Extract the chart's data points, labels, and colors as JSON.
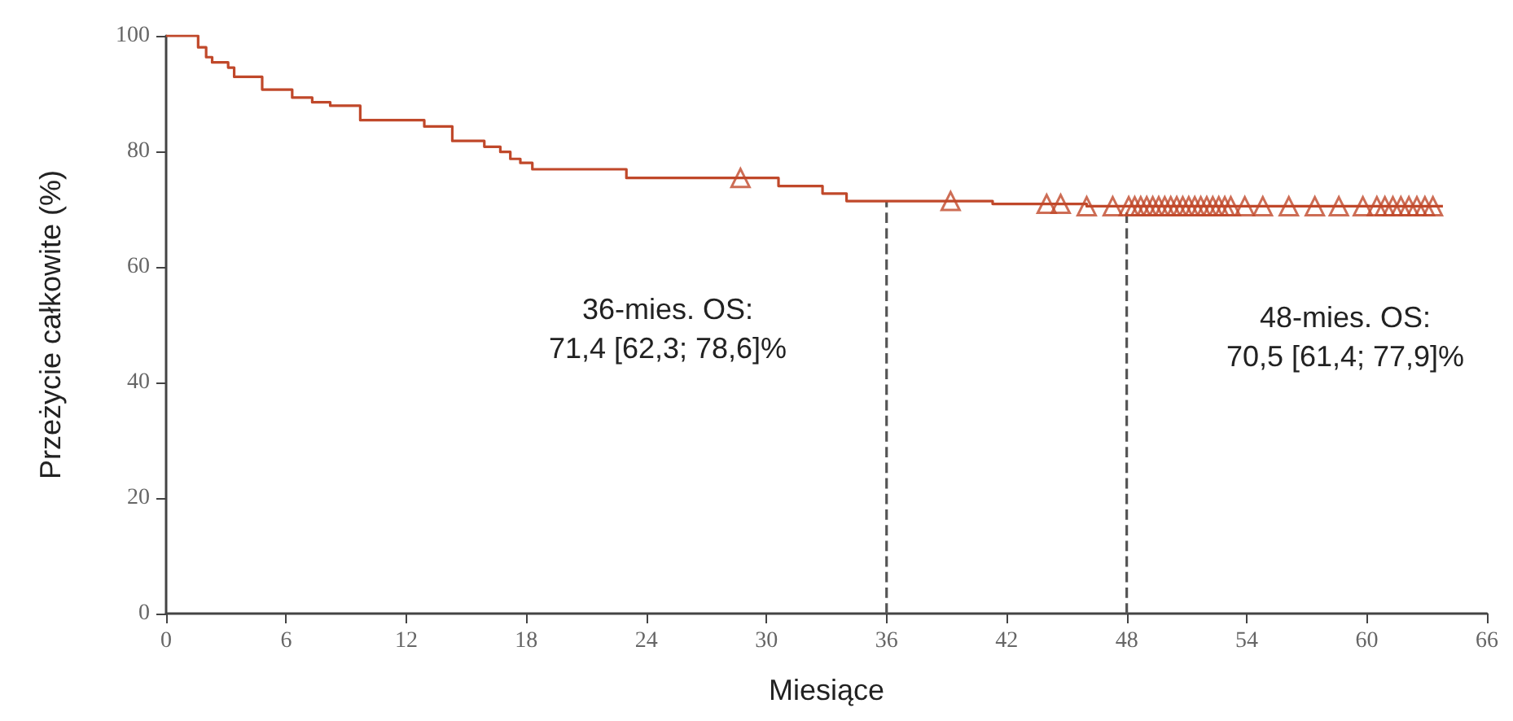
{
  "chart_data": {
    "type": "step",
    "xlabel": "Miesiące",
    "ylabel": "Przeżycie całkowite (%)",
    "xlim": [
      0,
      66
    ],
    "xticks": [
      0,
      6,
      12,
      18,
      24,
      30,
      36,
      42,
      48,
      54,
      60,
      66
    ],
    "ylim": [
      0,
      100
    ],
    "yticks": [
      0,
      20,
      40,
      60,
      80,
      100
    ],
    "grid": false,
    "series": [
      {
        "color": "#c0482a",
        "marker": "none",
        "x": [
          0,
          1.6,
          2.0,
          2.3,
          3.1,
          3.4,
          4.8,
          6.3,
          7.3,
          8.2,
          9.7,
          12.9,
          14.3,
          15.9,
          16.7,
          17.2,
          17.7,
          18.3,
          23.0,
          30.6,
          32.8,
          34.0,
          41.3,
          46.0,
          63.8
        ],
        "values": [
          100,
          98.0,
          96.3,
          95.4,
          94.5,
          92.9,
          90.7,
          89.3,
          88.5,
          87.9,
          85.4,
          84.3,
          81.8,
          80.8,
          79.9,
          78.7,
          78.0,
          76.9,
          75.4,
          74.0,
          72.7,
          71.4,
          70.9,
          70.5,
          70.5
        ]
      },
      {
        "type": "scatter",
        "color": "#c0482a",
        "marker": "triangle",
        "x": [
          28.7,
          39.2,
          44.0,
          44.7,
          46.0,
          47.3,
          48.1,
          48.4,
          48.7,
          49.0,
          49.3,
          49.6,
          49.9,
          50.2,
          50.5,
          50.8,
          51.1,
          51.4,
          51.7,
          52.0,
          52.3,
          52.6,
          52.9,
          53.2,
          53.9,
          54.8,
          56.1,
          57.4,
          58.6,
          59.8,
          60.5,
          60.9,
          61.3,
          61.7,
          62.1,
          62.5,
          62.9,
          63.3
        ],
        "values": [
          75.4,
          71.4,
          70.9,
          70.9,
          70.5,
          70.5,
          70.5,
          70.5,
          70.5,
          70.5,
          70.5,
          70.5,
          70.5,
          70.5,
          70.5,
          70.5,
          70.5,
          70.5,
          70.5,
          70.5,
          70.5,
          70.5,
          70.5,
          70.5,
          70.5,
          70.5,
          70.5,
          70.5,
          70.5,
          70.5,
          70.5,
          70.5,
          70.5,
          70.5,
          70.5,
          70.5,
          70.5,
          70.5
        ]
      }
    ],
    "ref_lines": [
      {
        "axis": "x",
        "value": 36,
        "color": "#555555",
        "line_style": "dashed"
      },
      {
        "axis": "x",
        "value": 48,
        "color": "#555555",
        "line_style": "dashed"
      }
    ],
    "annotations": [
      "36-mies. OS:\n71,4 [62,3; 78,6]%",
      "48-mies. OS:\n70,5 [61,4; 77,9]%"
    ]
  }
}
